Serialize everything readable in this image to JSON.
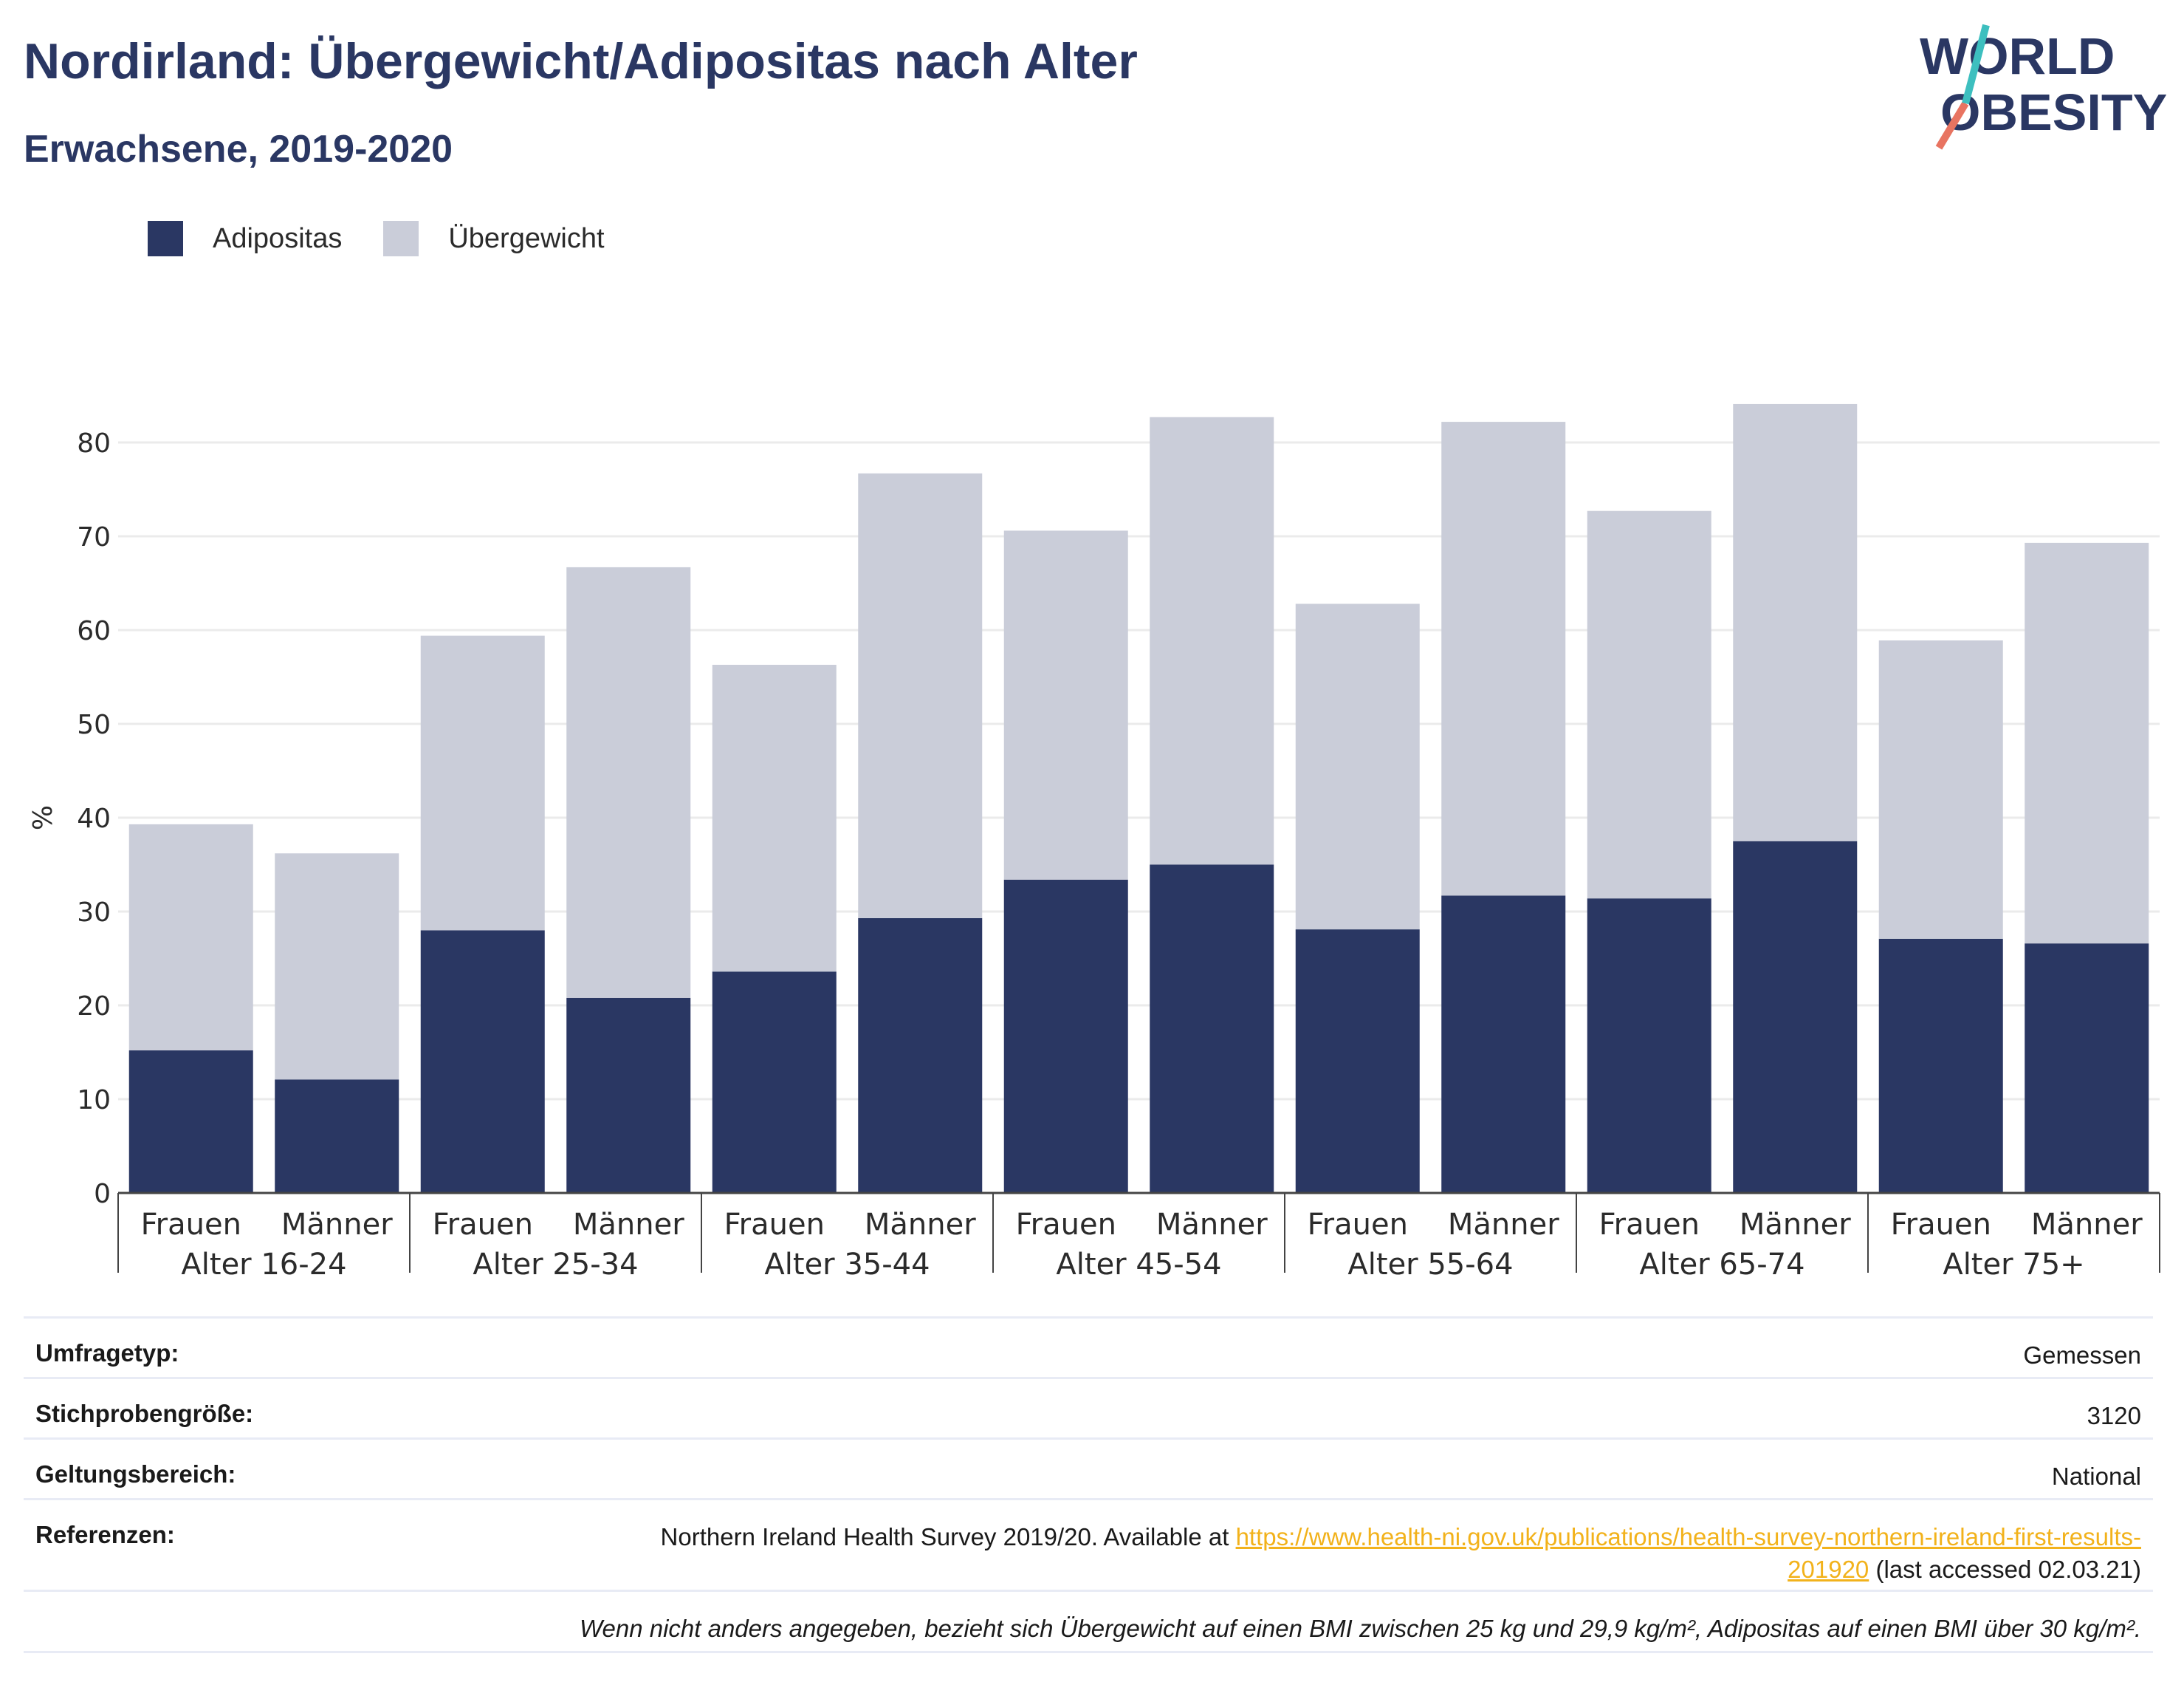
{
  "header": {
    "title": "Nordirland: Übergewicht/Adipositas nach Alter",
    "subtitle": "Erwachsene, 2019-2020"
  },
  "logo": {
    "line1": "WORLD",
    "line2": "OBESITY"
  },
  "legend": [
    {
      "label": "Adipositas",
      "color": "#2a3763"
    },
    {
      "label": "Übergewicht",
      "color": "#cacdd9"
    }
  ],
  "chart_data": {
    "type": "bar",
    "stacked": true,
    "ylabel": "%",
    "ylim": [
      0,
      84
    ],
    "yticks": [
      0,
      10,
      20,
      30,
      40,
      50,
      60,
      70,
      80
    ],
    "grid": true,
    "legend_position": "top-left",
    "groups": [
      "Alter 16-24",
      "Alter 25-34",
      "Alter 35-44",
      "Alter 45-54",
      "Alter 55-64",
      "Alter 65-74",
      "Alter 75+"
    ],
    "subcategories": [
      "Frauen",
      "Männer"
    ],
    "series": [
      {
        "name": "Adipositas",
        "color": "#2a3763",
        "values": [
          15.2,
          12.1,
          28.0,
          20.8,
          23.6,
          29.3,
          33.4,
          35.0,
          28.1,
          31.7,
          31.4,
          37.5,
          27.1,
          26.6
        ]
      },
      {
        "name": "Übergewicht",
        "color": "#cacdd9",
        "values": [
          24.1,
          24.1,
          31.4,
          45.9,
          32.7,
          47.4,
          37.2,
          47.7,
          34.7,
          50.5,
          41.3,
          46.6,
          31.8,
          42.7
        ]
      }
    ]
  },
  "info": {
    "survey_type_label": "Umfragetyp:",
    "survey_type_value": "Gemessen",
    "sample_size_label": "Stichprobengröße:",
    "sample_size_value": "3120",
    "scope_label": "Geltungsbereich:",
    "scope_value": "National",
    "references_label": "Referenzen:",
    "references_text": "Northern Ireland Health Survey 2019/20. Available at ",
    "references_link": "https://www.health-ni.gov.uk/publications/health-survey-northern-ireland-first-results-201920",
    "references_suffix": " (last accessed 02.03.21)",
    "note": "Wenn nicht anders angegeben, bezieht sich Übergewicht auf einen BMI zwischen 25 kg und 29,9 kg/m², Adipositas auf einen BMI über 30 kg/m²."
  }
}
